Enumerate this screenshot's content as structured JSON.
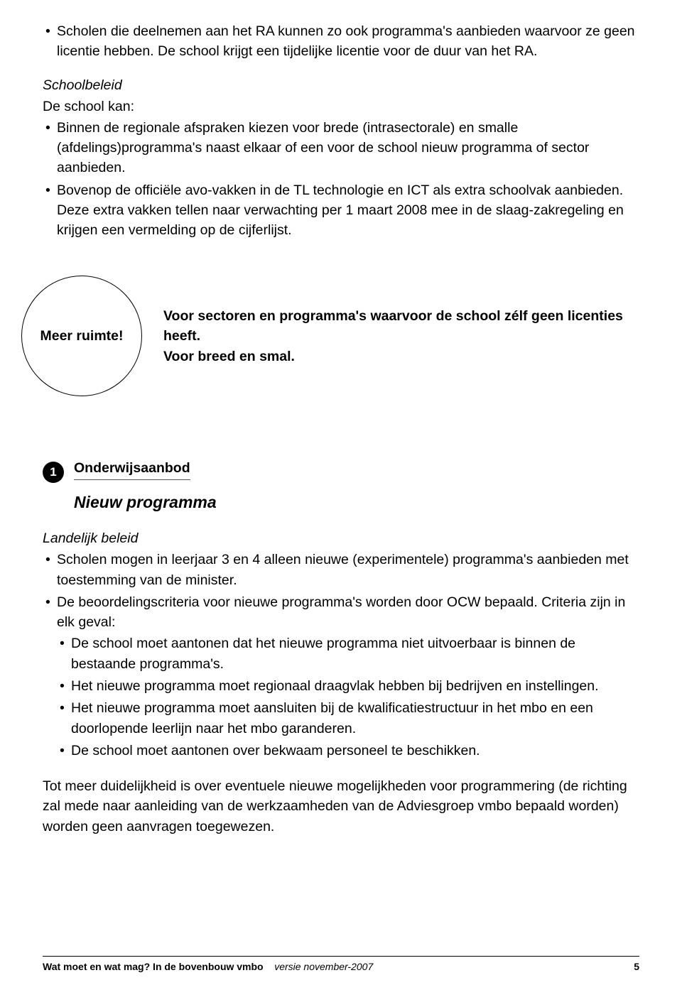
{
  "top_bullets": [
    "Scholen die deelnemen aan het RA kunnen zo ook programma's aanbieden waarvoor ze geen licentie hebben. De school krijgt een tijdelijke licentie voor de duur van het RA."
  ],
  "schoolbeleid": {
    "heading": "Schoolbeleid",
    "intro": "De school kan:",
    "bullets": [
      "Binnen de regionale afspraken kiezen voor brede (intrasectorale) en smalle (afdelings)programma's naast elkaar of een voor de school nieuw programma of sector aanbieden.",
      "Bovenop de officiële avo-vakken in de TL technologie en ICT als extra schoolvak aanbieden. Deze extra vakken tellen naar verwachting per 1 maart 2008 mee in de slaag-zakregeling en krijgen een vermelding op de cijferlijst."
    ]
  },
  "callout": {
    "circle": "Meer ruimte!",
    "line1": "Voor sectoren en programma's waarvoor de school zélf geen licenties heeft.",
    "line2": "Voor breed en smal."
  },
  "topic": {
    "number": "1",
    "overline": "Onderwijsaanbod",
    "title": "Nieuw programma"
  },
  "landelijk": {
    "heading": "Landelijk beleid",
    "bullets": [
      {
        "text": "Scholen mogen in leerjaar 3 en 4 alleen nieuwe (experimentele) programma's aanbieden met toestemming van de minister."
      },
      {
        "text": "De beoordelingscriteria voor nieuwe programma's worden door OCW bepaald. Criteria zijn in elk geval:",
        "sub": [
          "De school moet aantonen dat het nieuwe programma niet uitvoerbaar is binnen de bestaande programma's.",
          "Het nieuwe programma moet regionaal draagvlak hebben bij bedrijven en instellingen.",
          "Het nieuwe programma moet aansluiten bij de kwalificatiestructuur in het mbo en een doorlopende leerlijn naar het mbo garanderen.",
          "De school moet aantonen over bekwaam personeel te beschikken."
        ]
      }
    ],
    "closing": "Tot meer duidelijkheid is over eventuele nieuwe mogelijkheden voor programmering (de richting zal mede naar aanleiding van de werkzaamheden van de Adviesgroep vmbo bepaald worden) worden geen aanvragen toegewezen."
  },
  "footer": {
    "title_bold": "Wat moet en wat mag? In de bovenbouw vmbo",
    "title_ital": "versie november-2007",
    "page": "5"
  },
  "colors": {
    "text": "#000000",
    "bg": "#ffffff"
  }
}
